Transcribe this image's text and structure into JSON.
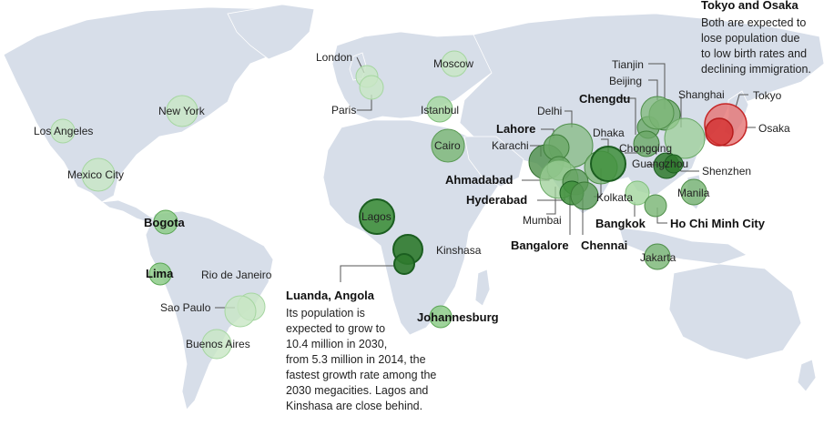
{
  "colors": {
    "land": "#d7dee9",
    "growth_light": "#b9e0b4",
    "growth_mid": "#7fbf7a",
    "growth_dark": "#2e7d32",
    "decline": "#d32f2f"
  },
  "cities": [
    {
      "name": "Los Angeles",
      "bold": false,
      "trend": "light"
    },
    {
      "name": "Mexico City",
      "bold": false,
      "trend": "light"
    },
    {
      "name": "New York",
      "bold": false,
      "trend": "light"
    },
    {
      "name": "Bogota",
      "bold": true,
      "trend": "mid"
    },
    {
      "name": "Lima",
      "bold": true,
      "trend": "mid"
    },
    {
      "name": "Rio de Janeiro",
      "bold": false,
      "trend": "light"
    },
    {
      "name": "Sao Paulo",
      "bold": false,
      "trend": "light"
    },
    {
      "name": "Buenos Aires",
      "bold": false,
      "trend": "light"
    },
    {
      "name": "London",
      "bold": false,
      "trend": "light"
    },
    {
      "name": "Paris",
      "bold": false,
      "trend": "light"
    },
    {
      "name": "Moscow",
      "bold": false,
      "trend": "light"
    },
    {
      "name": "Istanbul",
      "bold": false,
      "trend": "light"
    },
    {
      "name": "Cairo",
      "bold": false,
      "trend": "mid"
    },
    {
      "name": "Lagos",
      "bold": false,
      "trend": "dark"
    },
    {
      "name": "Kinshasa",
      "bold": false,
      "trend": "dark"
    },
    {
      "name": "Johannesburg",
      "bold": true,
      "trend": "mid"
    },
    {
      "name": "Lahore",
      "bold": true,
      "trend": "mid"
    },
    {
      "name": "Delhi",
      "bold": false,
      "trend": "mid"
    },
    {
      "name": "Karachi",
      "bold": false,
      "trend": "mid"
    },
    {
      "name": "Ahmadabad",
      "bold": true,
      "trend": "mid"
    },
    {
      "name": "Hyderabad",
      "bold": true,
      "trend": "mid"
    },
    {
      "name": "Mumbai",
      "bold": false,
      "trend": "mid"
    },
    {
      "name": "Bangalore",
      "bold": true,
      "trend": "dark"
    },
    {
      "name": "Chennai",
      "bold": true,
      "trend": "mid"
    },
    {
      "name": "Kolkata",
      "bold": false,
      "trend": "mid"
    },
    {
      "name": "Dhaka",
      "bold": false,
      "trend": "dark"
    },
    {
      "name": "Chengdu",
      "bold": true,
      "trend": "mid"
    },
    {
      "name": "Chongqing",
      "bold": false,
      "trend": "mid"
    },
    {
      "name": "Beijing",
      "bold": false,
      "trend": "mid"
    },
    {
      "name": "Tianjin",
      "bold": false,
      "trend": "mid"
    },
    {
      "name": "Shanghai",
      "bold": false,
      "trend": "mid"
    },
    {
      "name": "Guangzhou",
      "bold": false,
      "trend": "dark"
    },
    {
      "name": "Shenzhen",
      "bold": false,
      "trend": "dark"
    },
    {
      "name": "Bangkok",
      "bold": true,
      "trend": "light"
    },
    {
      "name": "Ho Chi Minh City",
      "bold": true,
      "trend": "mid"
    },
    {
      "name": "Manila",
      "bold": false,
      "trend": "mid"
    },
    {
      "name": "Jakarta",
      "bold": false,
      "trend": "mid"
    },
    {
      "name": "Tokyo",
      "bold": false,
      "trend": "decline"
    },
    {
      "name": "Osaka",
      "bold": false,
      "trend": "decline"
    }
  ],
  "annotations": {
    "tokyo_osaka": {
      "title": "Tokyo and Osaka",
      "lines": [
        "Both are expected to",
        "lose population due",
        "to low birth rates and",
        "declining immigration."
      ]
    },
    "luanda": {
      "title": "Luanda, Angola",
      "lines": [
        "Its population is",
        "expected to grow to",
        "10.4 million in 2030,",
        "from 5.3 million in 2014, the",
        "fastest growth rate among the",
        "2030 megacities. Lagos and",
        "Kinshasa are close behind."
      ]
    }
  }
}
